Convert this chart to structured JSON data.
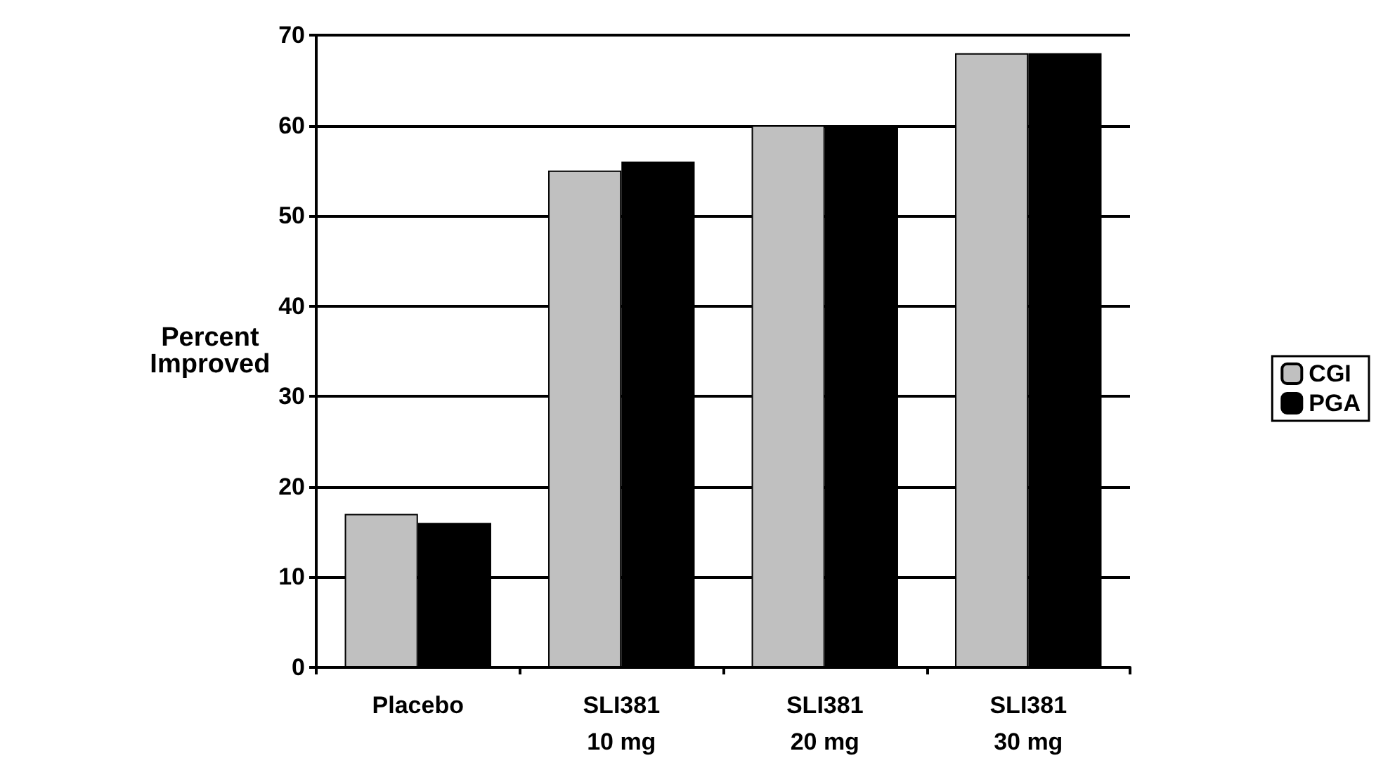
{
  "chart_data": {
    "type": "bar",
    "ylabel": "Percent\nImproved",
    "categories": [
      "Placebo",
      "SLI381\n10 mg",
      "SLI381\n20 mg",
      "SLI381\n30 mg"
    ],
    "series": [
      {
        "name": "CGI",
        "color": "#c0c0c0",
        "values": [
          17,
          55,
          60,
          68
        ]
      },
      {
        "name": "PGA",
        "color": "#000000",
        "values": [
          16,
          56,
          60,
          68
        ]
      }
    ],
    "ylim": [
      0,
      70
    ],
    "yticks": [
      0,
      10,
      20,
      30,
      40,
      50,
      60,
      70
    ],
    "grid": "y",
    "legend": "right"
  }
}
